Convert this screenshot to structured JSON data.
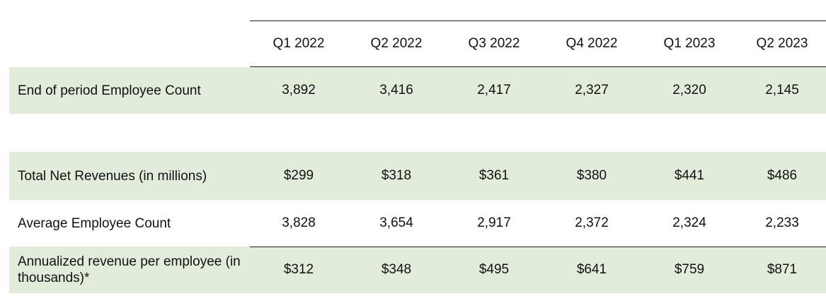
{
  "table": {
    "columns": [
      "Q1 2022",
      "Q2 2022",
      "Q3 2022",
      "Q4 2022",
      "Q1 2023",
      "Q2 2023"
    ],
    "rows": [
      {
        "label": "End of period Employee Count",
        "values": [
          "3,892",
          "3,416",
          "2,417",
          "2,327",
          "2,320",
          "2,145"
        ]
      },
      {
        "label": "Total Net Revenues (in millions)",
        "values": [
          "$299",
          "$318",
          "$361",
          "$380",
          "$441",
          "$486"
        ]
      },
      {
        "label": "Average Employee Count",
        "values": [
          "3,828",
          "3,654",
          "2,917",
          "2,372",
          "2,324",
          "2,233"
        ]
      },
      {
        "label": "Annualized revenue per employee (in thousands)*",
        "values": [
          "$312",
          "$348",
          "$495",
          "$641",
          "$759",
          "$871"
        ]
      }
    ]
  },
  "colors": {
    "row_shade": "#e1ecdb",
    "rule": "#222222"
  }
}
